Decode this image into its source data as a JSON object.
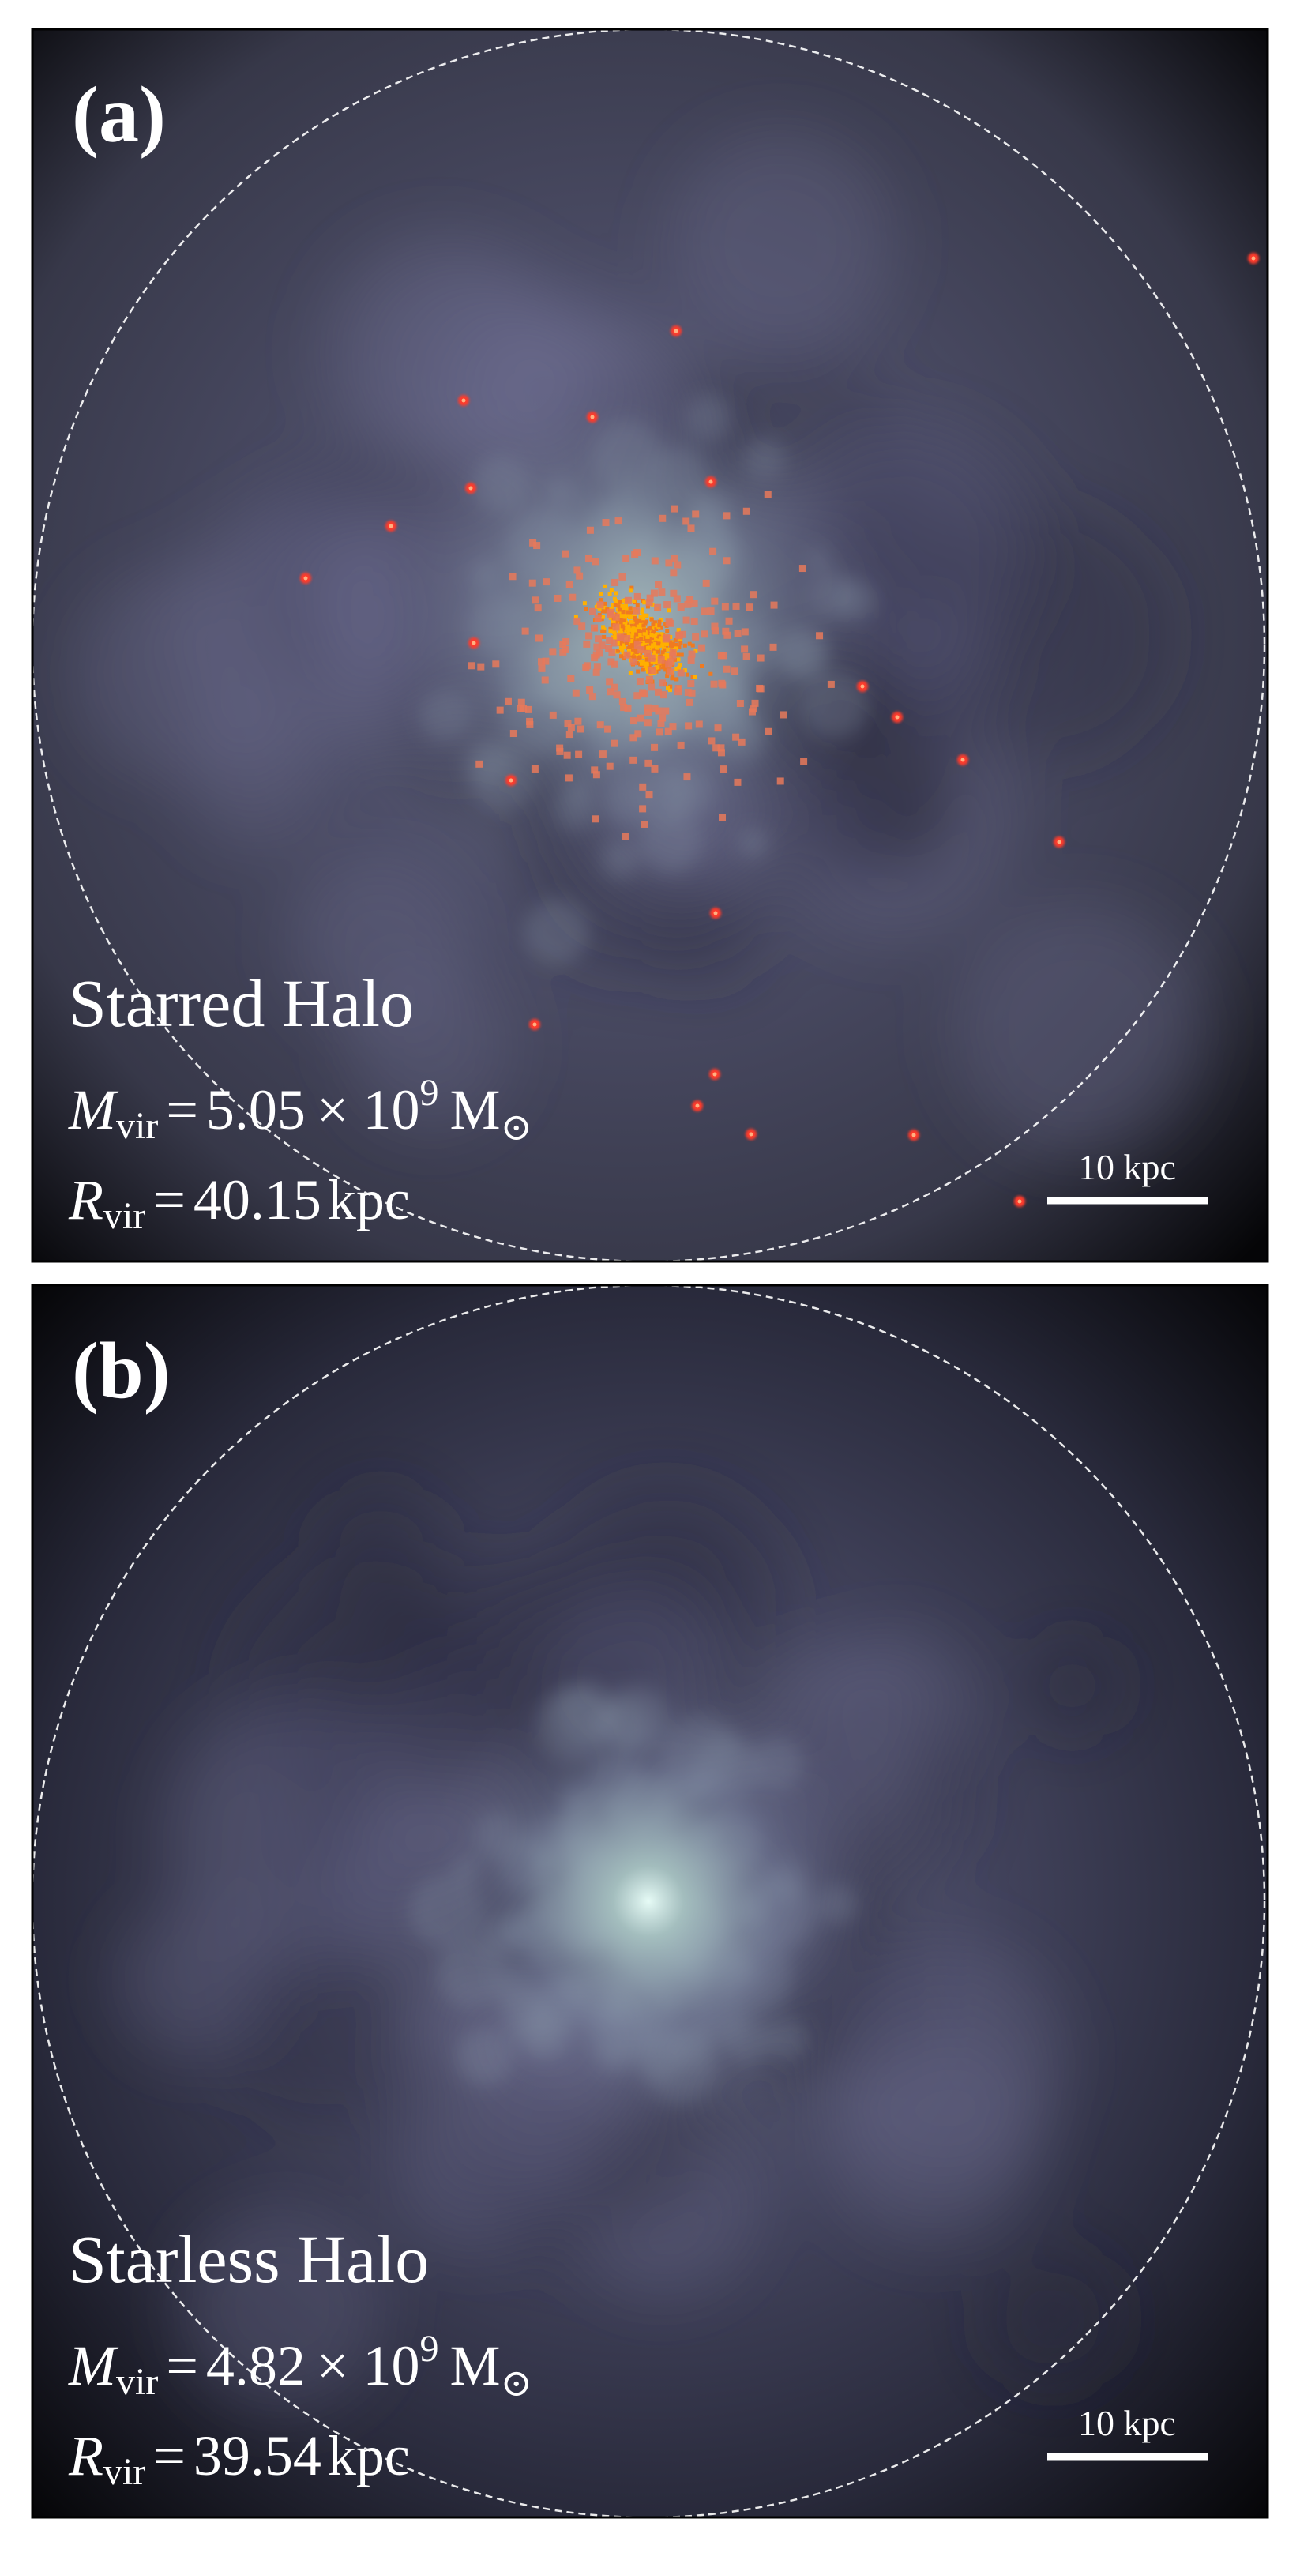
{
  "panels": [
    {
      "label": "(a)",
      "title": "Starred Halo",
      "mass": {
        "symbol": "M",
        "sub": "vir",
        "eq": "=",
        "mantissa": "5.05",
        "times": "× 10",
        "exponent": "9",
        "unit": "M",
        "unit_sub": "⊙"
      },
      "radius": {
        "symbol": "R",
        "sub": "vir",
        "eq": "=",
        "value": "40.15",
        "unit": "kpc"
      },
      "scale_bar": "10 kpc"
    },
    {
      "label": "(b)",
      "title": "Starless Halo",
      "mass": {
        "symbol": "M",
        "sub": "vir",
        "eq": "=",
        "mantissa": "4.82",
        "times": "× 10",
        "exponent": "9",
        "unit": "M",
        "unit_sub": "⊙"
      },
      "radius": {
        "symbol": "R",
        "sub": "vir",
        "eq": "=",
        "value": "39.54",
        "unit": "kpc"
      },
      "scale_bar": "10 kpc"
    }
  ]
}
